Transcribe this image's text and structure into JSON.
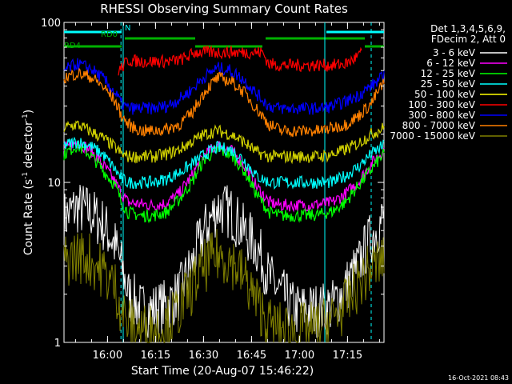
{
  "chart_data": {
    "type": "line",
    "title": "RHESSI Observing Summary Count Rates",
    "xlabel": "Start Time (20-Aug-07 15:46:22)",
    "ylabel": "Count Rate (s",
    "ylabel_sup": "-1",
    "ylabel_tail": " detector",
    "ylabel_end": ")",
    "y_scale": "log",
    "ylim": [
      1,
      100
    ],
    "xlim_minutes": [
      0,
      100
    ],
    "x_tick_labels": [
      "16:00",
      "16:15",
      "16:30",
      "16:45",
      "17:00",
      "17:15"
    ],
    "x_tick_minutes": [
      13.6,
      28.6,
      43.6,
      58.6,
      73.6,
      88.6
    ],
    "y_tick_labels": [
      "1",
      "10",
      "100"
    ],
    "y_tick_values": [
      1,
      10,
      100
    ],
    "legend_header": [
      "Det 1,3,4,5,6,9,",
      "FDecim 2, Att 0"
    ],
    "timestamp": "16-Oct-2021 08:43",
    "flags": [
      {
        "label": "N",
        "color": "#00ffff",
        "segments": [
          [
            0,
            18
          ],
          [
            82,
            100
          ]
        ]
      },
      {
        "label": "RD0",
        "color": "#00b000",
        "segments": [
          [
            19,
            41
          ],
          [
            63,
            94
          ]
        ]
      },
      {
        "label": "RD4",
        "color": "#00b000",
        "segments": [
          [
            0,
            18
          ],
          [
            41,
            62
          ],
          [
            94,
            100
          ]
        ]
      }
    ],
    "vlines_solid": [
      18.5,
      81.5
    ],
    "vlines_dashed": [
      17.8,
      100
    ],
    "series": [
      {
        "name": "3 - 6 keV",
        "color": "#ffffff",
        "plot_color": "#000000",
        "x": [
          0,
          4,
          8,
          12,
          16,
          18,
          20,
          24,
          28,
          32,
          36,
          40,
          44,
          48,
          52,
          56,
          60,
          64,
          68,
          72,
          76,
          80,
          84,
          88,
          92,
          96,
          100
        ],
        "y": [
          6.0,
          7.0,
          6.5,
          5.5,
          4.0,
          3.0,
          2.0,
          1.6,
          1.6,
          1.7,
          2.0,
          3.0,
          5.0,
          7.0,
          6.5,
          5.0,
          4.0,
          2.5,
          2.0,
          1.6,
          1.6,
          1.6,
          1.7,
          2.2,
          3.0,
          4.5,
          6.0
        ]
      },
      {
        "name": "6 - 12 keV",
        "color": "#ff00ff",
        "x": [
          0,
          4,
          8,
          12,
          16,
          18,
          20,
          24,
          28,
          32,
          36,
          40,
          44,
          48,
          52,
          56,
          60,
          64,
          68,
          72,
          76,
          80,
          84,
          88,
          92,
          96,
          100
        ],
        "y": [
          16,
          18,
          16,
          13,
          10,
          8.5,
          7.5,
          7.3,
          7.2,
          7.4,
          8.5,
          11,
          15,
          17,
          16,
          13,
          9.5,
          7.5,
          7.2,
          7.2,
          7.2,
          7.3,
          7.5,
          8.5,
          10,
          13,
          16
        ]
      },
      {
        "name": "12 - 25 keV",
        "color": "#00ff00",
        "x": [
          0,
          4,
          8,
          12,
          16,
          18,
          20,
          24,
          28,
          32,
          36,
          40,
          44,
          48,
          52,
          56,
          60,
          64,
          68,
          72,
          76,
          80,
          84,
          88,
          92,
          96,
          100
        ],
        "y": [
          15,
          17,
          15,
          12,
          9.5,
          7.5,
          6.5,
          6.2,
          6.2,
          6.5,
          7.8,
          10,
          14,
          16,
          15,
          12,
          8.5,
          6.5,
          6.2,
          6.2,
          6.2,
          6.3,
          6.6,
          7.5,
          9.5,
          12,
          15
        ]
      },
      {
        "name": "25 - 50 keV",
        "color": "#00ffff",
        "x": [
          0,
          4,
          8,
          12,
          16,
          18,
          20,
          24,
          28,
          32,
          36,
          40,
          44,
          48,
          52,
          56,
          60,
          64,
          68,
          72,
          76,
          80,
          84,
          88,
          92,
          96,
          100
        ],
        "y": [
          17,
          18,
          17,
          15,
          12,
          10.5,
          10,
          10,
          10,
          10.5,
          11.5,
          13,
          15,
          16.5,
          16,
          14,
          11,
          10,
          10,
          10,
          10,
          10,
          10,
          11,
          12.5,
          15,
          17
        ]
      },
      {
        "name": "50 - 100 keV",
        "color": "#ffff00",
        "plot_color": "#d0d000",
        "x": [
          0,
          4,
          8,
          12,
          16,
          18,
          20,
          24,
          28,
          32,
          36,
          40,
          44,
          48,
          52,
          56,
          60,
          64,
          68,
          72,
          76,
          80,
          84,
          88,
          92,
          96,
          100
        ],
        "y": [
          22,
          23,
          21,
          19,
          16.5,
          15,
          14.5,
          14.5,
          14.5,
          15,
          16,
          18,
          20,
          21,
          20,
          18,
          15.5,
          14.5,
          14.5,
          14.5,
          14.5,
          14.5,
          15,
          16,
          17.5,
          20,
          22
        ]
      },
      {
        "name": "100 - 300 keV",
        "color": "#ff0000",
        "x": [
          17,
          18,
          20,
          24,
          28,
          32,
          36,
          38,
          41,
          62,
          64,
          68,
          72,
          76,
          80,
          84,
          88,
          90,
          93
        ],
        "y": [
          50,
          52,
          58,
          57,
          57,
          57,
          58,
          60,
          65,
          65,
          55,
          54,
          54,
          54,
          54,
          54,
          55,
          58,
          64
        ]
      },
      {
        "name": "300 - 800 keV",
        "color": "#0000ff",
        "x": [
          0,
          4,
          8,
          12,
          16,
          18,
          20,
          24,
          28,
          32,
          36,
          40,
          44,
          48,
          52,
          56,
          60,
          64,
          68,
          72,
          76,
          80,
          84,
          88,
          92,
          96,
          100
        ],
        "y": [
          50,
          55,
          52,
          45,
          36,
          31,
          29,
          29,
          29,
          30,
          33,
          38,
          46,
          52,
          50,
          44,
          36,
          30,
          29,
          29,
          29,
          29,
          30,
          32,
          35,
          40,
          46
        ]
      },
      {
        "name": "800 - 7000 keV",
        "color": "#ff8000",
        "x": [
          0,
          4,
          8,
          12,
          16,
          18,
          20,
          24,
          28,
          32,
          36,
          40,
          44,
          48,
          52,
          56,
          60,
          64,
          68,
          72,
          76,
          80,
          84,
          88,
          92,
          96,
          100
        ],
        "y": [
          45,
          48,
          46,
          40,
          32,
          26,
          23,
          21,
          21,
          21.5,
          23,
          27,
          37,
          45,
          43,
          37,
          29,
          23,
          21,
          21,
          21,
          21,
          22,
          23,
          26,
          31,
          42
        ]
      },
      {
        "name": "7000 - 15000 keV",
        "color": "#808000",
        "x": [
          0,
          4,
          8,
          12,
          16,
          18,
          20,
          24,
          28,
          32,
          36,
          40,
          44,
          48,
          52,
          56,
          60,
          64,
          68,
          72,
          76,
          80,
          84,
          88,
          92,
          96,
          100
        ],
        "y": [
          3.2,
          3.5,
          3.3,
          2.8,
          2.2,
          1.6,
          1.3,
          1.2,
          1.2,
          1.3,
          1.6,
          2.2,
          3.0,
          3.5,
          3.3,
          2.6,
          1.8,
          1.3,
          1.2,
          1.2,
          1.2,
          1.25,
          1.4,
          1.7,
          2.3,
          2.9,
          3.3
        ]
      }
    ]
  }
}
